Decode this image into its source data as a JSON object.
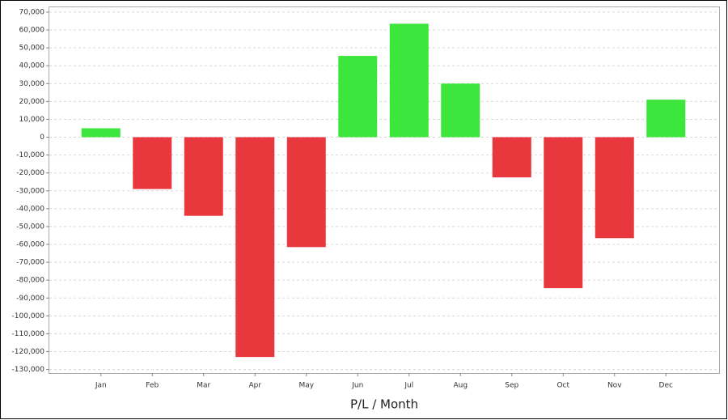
{
  "chart_data": {
    "type": "bar",
    "x_label": "P/L / Month",
    "categories": [
      "Jan",
      "Feb",
      "Mar",
      "Apr",
      "May",
      "Jun",
      "Jul",
      "Aug",
      "Sep",
      "Oct",
      "Nov",
      "Dec"
    ],
    "values": [
      5000,
      -29000,
      -44000,
      -123000,
      -61500,
      45500,
      63500,
      30000,
      -22500,
      -84500,
      -56500,
      21000
    ],
    "positive_color": "#3de63d",
    "negative_color": "#e8373d",
    "ylim": [
      -132000,
      72700
    ],
    "yticks": [
      {
        "value": 70000,
        "label": "70,000"
      },
      {
        "value": 60000,
        "label": "60,000"
      },
      {
        "value": 50000,
        "label": "50,000"
      },
      {
        "value": 40000,
        "label": "40,000"
      },
      {
        "value": 30000,
        "label": "30,000"
      },
      {
        "value": 20000,
        "label": "20,000"
      },
      {
        "value": 10000,
        "label": "10,000"
      },
      0,
      {
        "value": -10000,
        "label": "-10,000"
      },
      {
        "value": -20000,
        "label": "-20,000"
      },
      {
        "value": -30000,
        "label": "-30,000"
      },
      {
        "value": -40000,
        "label": "-40,000"
      },
      {
        "value": -50000,
        "label": "-50,000"
      },
      {
        "value": -60000,
        "label": "-60,000"
      },
      {
        "value": -70000,
        "label": "-70,000"
      },
      {
        "value": -80000,
        "label": "-80,000"
      },
      {
        "value": -90000,
        "label": "-90,000"
      },
      {
        "value": -100000,
        "label": "-100,000"
      },
      {
        "value": -110000,
        "label": "-110,000"
      },
      {
        "value": -120000,
        "label": "-120,000"
      },
      {
        "value": -130000,
        "label": "-130,000"
      }
    ],
    "grid": true
  }
}
